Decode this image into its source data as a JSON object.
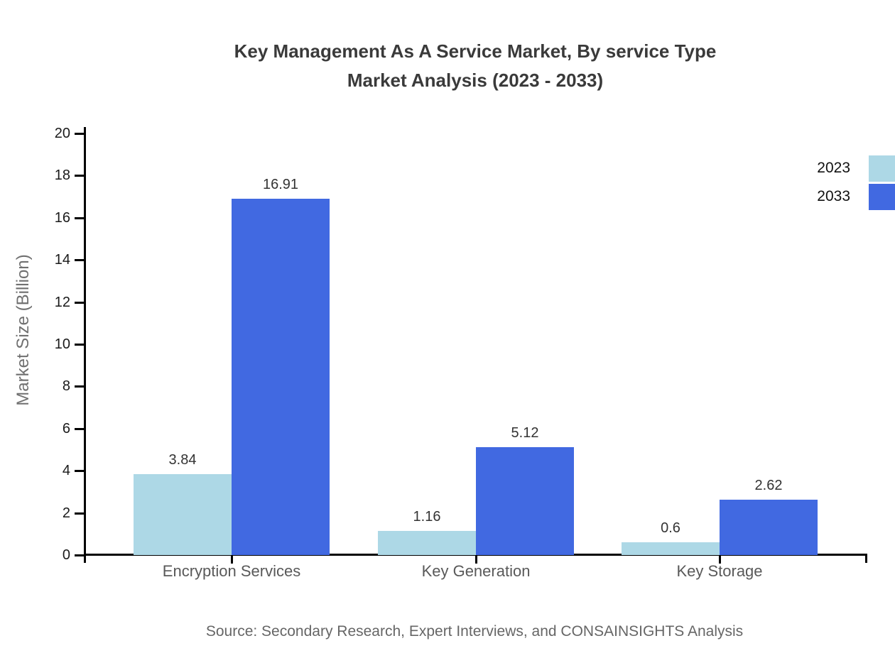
{
  "page": {
    "background": "#ffffff"
  },
  "title": {
    "line1": "Key Management As A Service Market, By service Type",
    "line2": "Market Analysis (2023 - 2033)"
  },
  "source_note": "Source: Secondary Research, Expert Interviews, and CONSAINSIGHTS Analysis",
  "chart_data": {
    "type": "bar",
    "title": "Key Management As A Service Market, By service Type Market Analysis (2023 - 2033)",
    "categories": [
      "Encryption Services",
      "Key Generation",
      "Key Storage"
    ],
    "series": [
      {
        "name": "2023",
        "color": "#ADD8E6",
        "values": [
          3.84,
          1.16,
          0.6
        ]
      },
      {
        "name": "2033",
        "color": "#4169E1",
        "values": [
          16.91,
          5.12,
          2.62
        ]
      }
    ],
    "xlabel": "",
    "ylabel": "Market Size (Billion)",
    "ylim": [
      0,
      20
    ],
    "yticks": [
      0,
      2,
      4,
      6,
      8,
      10,
      12,
      14,
      16,
      18,
      20
    ],
    "grid": false,
    "legend_position": "top-right",
    "axis_color": "#000000",
    "value_label_color": "#333333"
  }
}
